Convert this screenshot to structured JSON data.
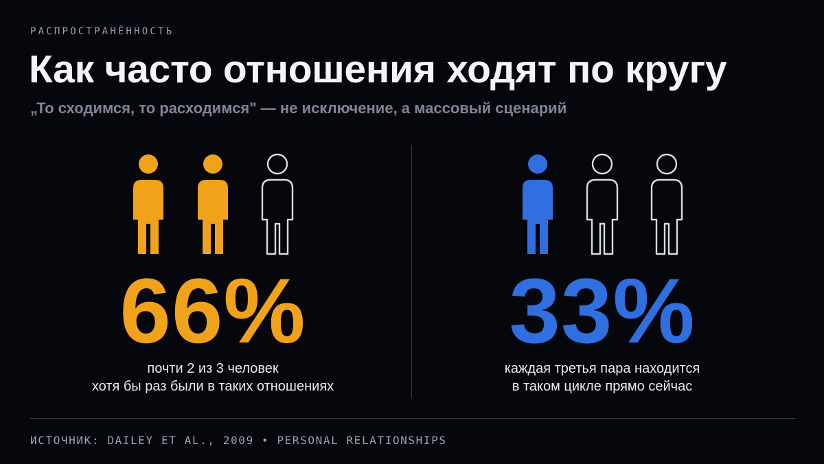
{
  "eyebrow": "РАСПРОСТРАНЁННОСТЬ",
  "title": "Как часто отношения ходят по кругу",
  "subtitle": "„То сходимся, то расходимся\" — не исключение, а массовый сценарий",
  "colors": {
    "background": "#06070d",
    "accent_orange": "#f0a21b",
    "accent_blue": "#2f6fe0",
    "outline": "#d9dbe2"
  },
  "stats": [
    {
      "value": "66%",
      "icons_filled": 2,
      "icons_total": 3,
      "icon": "person-icon",
      "color": "#f0a21b",
      "caption_line1": "почти 2 из 3 человек",
      "caption_line2": "хотя бы раз были в таких отношениях"
    },
    {
      "value": "33%",
      "icons_filled": 1,
      "icons_total": 3,
      "icon": "person-icon",
      "color": "#2f6fe0",
      "caption_line1": "каждая третья пара находится",
      "caption_line2": "в таком цикле прямо сейчас"
    }
  ],
  "source": "ИСТОЧНИК: DAILEY ET AL., 2009 • PERSONAL RELATIONSHIPS"
}
